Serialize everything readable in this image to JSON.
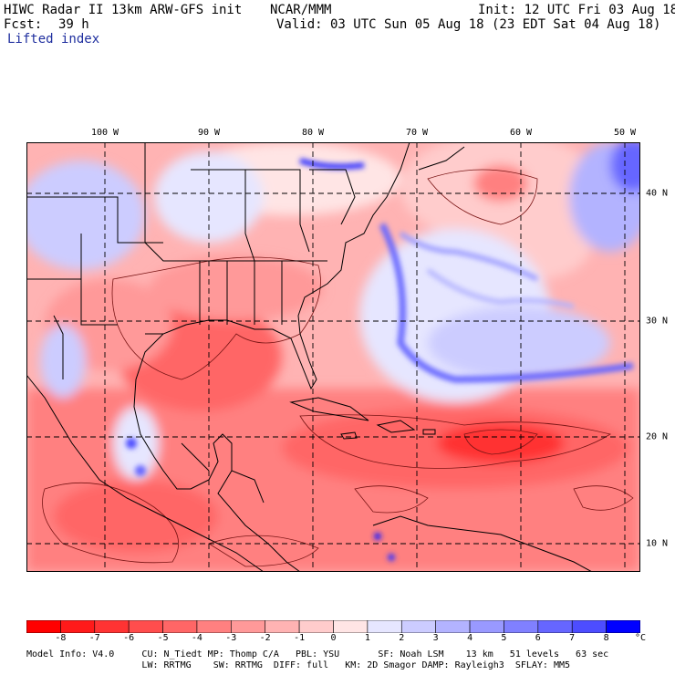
{
  "header": {
    "title_left": "HIWC Radar II 13km ARW-GFS init",
    "org": "NCAR/MMM",
    "init": "Init: 12 UTC Fri 03 Aug 18",
    "fcst_label": "Fcst:",
    "fcst_value": "39 h",
    "valid": "Valid: 03 UTC Sun 05 Aug 18 (23 EDT Sat 04 Aug 18)",
    "field": "Lifted index"
  },
  "map": {
    "lon_labels": [
      "100 W",
      "90 W",
      "80 W",
      "70 W",
      "60 W",
      "50 W"
    ],
    "lat_labels": [
      "40 N",
      "30 N",
      "20 N",
      "10 N"
    ],
    "colors": {
      "neutral": "#ffffff",
      "warm_scale": [
        "#ffe5e5",
        "#ffcccc",
        "#ffb3b3",
        "#ff9999",
        "#ff8080",
        "#ff6666",
        "#ff4d4d",
        "#ff3333",
        "#ff1a1a"
      ],
      "cool_scale": [
        "#e6e6ff",
        "#ccccff",
        "#b3b3ff",
        "#9999ff",
        "#8080ff",
        "#6666ff",
        "#4d4dff",
        "#3333ff",
        "#1a1aff"
      ],
      "line": "#000000",
      "contour": "#7a1515"
    }
  },
  "colorbar": {
    "ticks": [
      "-8",
      "-7",
      "-6",
      "-5",
      "-4",
      "-3",
      "-2",
      "-1",
      "0",
      "1",
      "2",
      "3",
      "4",
      "5",
      "6",
      "7",
      "8"
    ],
    "unit": "°C",
    "colors": [
      "#ff0000",
      "#ff1a1a",
      "#ff3333",
      "#ff4d4d",
      "#ff6666",
      "#ff8080",
      "#ff9999",
      "#ffb3b3",
      "#ffcccc",
      "#ffe5e5",
      "#e6e6ff",
      "#ccccff",
      "#b3b3ff",
      "#9999ff",
      "#8080ff",
      "#6666ff",
      "#4d4dff",
      "#0000ff"
    ]
  },
  "footer": {
    "line1": "Model Info: V4.0     CU: N_Tiedt MP: Thomp C/A   PBL: YSU       SF: Noah LSM    13 km   51 levels   63 sec",
    "line2": "                     LW: RRTMG    SW: RRTMG  DIFF: full   KM: 2D Smagor DAMP: Rayleigh3  SFLAY: MM5"
  }
}
